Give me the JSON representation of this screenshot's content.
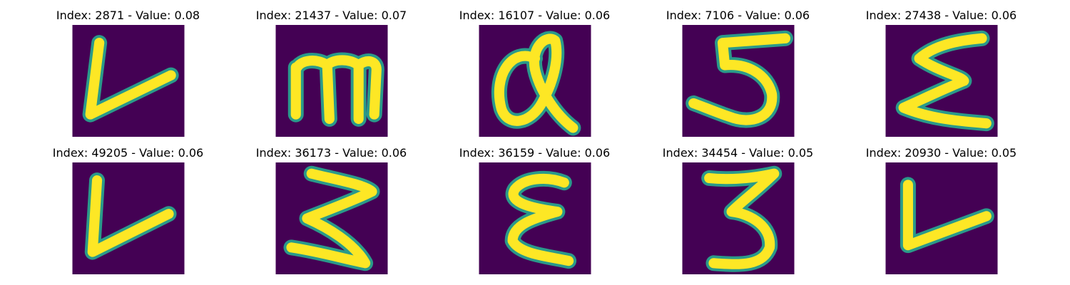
{
  "figure": {
    "background": "#ffffff",
    "image_background_color": "#440154",
    "stroke_color": "#fde725",
    "edge_color": "#2a9a8a",
    "panels": [
      {
        "title": "Index: 2871 - Value: 0.08",
        "depicted_character": "L"
      },
      {
        "title": "Index: 21437 - Value: 0.07",
        "depicted_character": "m"
      },
      {
        "title": "Index: 16107 - Value: 0.06",
        "depicted_character": "a"
      },
      {
        "title": "Index: 7106 - Value: 0.06",
        "depicted_character": "5"
      },
      {
        "title": "Index: 27438 - Value: 0.06",
        "depicted_character": "E"
      },
      {
        "title": "Index: 49205 - Value: 0.06",
        "depicted_character": "L"
      },
      {
        "title": "Index: 36173 - Value: 0.06",
        "depicted_character": "3"
      },
      {
        "title": "Index: 36159 - Value: 0.06",
        "depicted_character": "E"
      },
      {
        "title": "Index: 34454 - Value: 0.05",
        "depicted_character": "3"
      },
      {
        "title": "Index: 20930 - Value: 0.05",
        "depicted_character": "L"
      }
    ]
  }
}
